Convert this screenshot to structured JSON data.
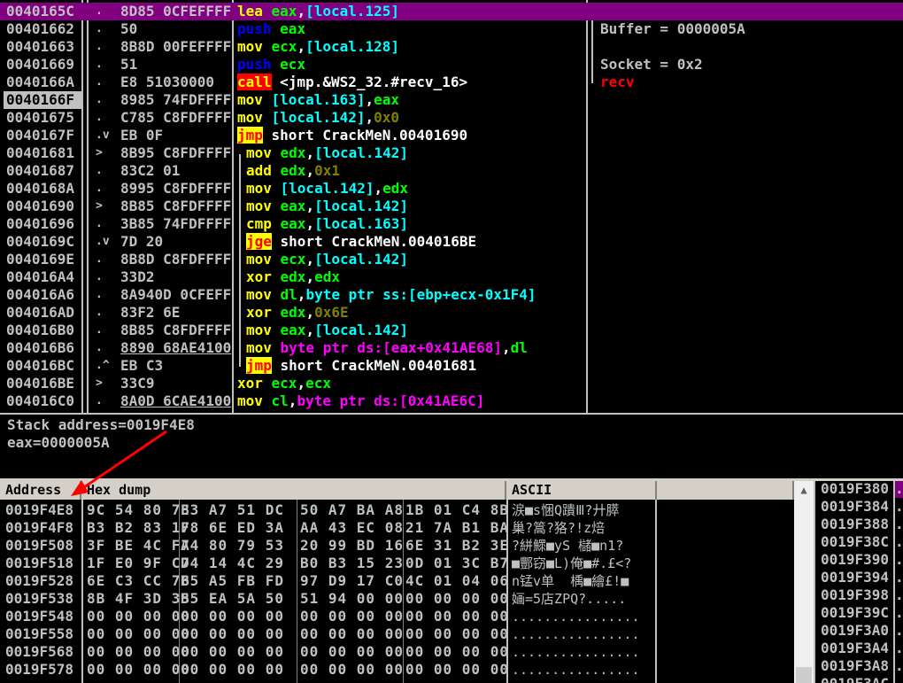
{
  "disasm": [
    {
      "addr": "0040165C",
      "mark": ".",
      "hex": "8D85 0CFEFFFF",
      "ins": [
        [
          "lea ",
          "c-y"
        ],
        [
          "eax",
          "c-g"
        ],
        [
          ",",
          "c-w"
        ],
        [
          "[local.125]",
          "c-c"
        ]
      ],
      "selected": true
    },
    {
      "addr": "00401662",
      "mark": ".",
      "hex": "50",
      "ins": [
        [
          "push ",
          "c-b"
        ],
        [
          "eax",
          "c-g"
        ]
      ]
    },
    {
      "addr": "00401663",
      "mark": ".",
      "hex": "8B8D 00FEFFFF",
      "ins": [
        [
          "mov ",
          "c-y"
        ],
        [
          "ecx",
          "c-g"
        ],
        [
          ",",
          "c-w"
        ],
        [
          "[local.128]",
          "c-c"
        ]
      ]
    },
    {
      "addr": "00401669",
      "mark": ".",
      "hex": "51",
      "ins": [
        [
          "push ",
          "c-b"
        ],
        [
          "ecx",
          "c-g"
        ]
      ]
    },
    {
      "addr": "0040166A",
      "mark": ".",
      "hex": "E8 51030000",
      "ins": [
        [
          "call",
          "call"
        ],
        [
          " <jmp.&WS2_32.#recv_16>",
          "c-w"
        ]
      ]
    },
    {
      "addr": "0040166F",
      "mark": ".",
      "hex": "8985 74FDFFFF",
      "ins": [
        [
          "mov ",
          "c-y"
        ],
        [
          "[local.163]",
          "c-c"
        ],
        [
          ",",
          "c-w"
        ],
        [
          "eax",
          "c-g"
        ]
      ],
      "current": true
    },
    {
      "addr": "00401675",
      "mark": ".",
      "hex": "C785 C8FDFFFF",
      "ins": [
        [
          "mov ",
          "c-y"
        ],
        [
          "[local.142]",
          "c-c"
        ],
        [
          ",",
          "c-w"
        ],
        [
          "0x0",
          "c-o"
        ]
      ]
    },
    {
      "addr": "0040167F",
      "mark": ".v",
      "hex": "EB 0F",
      "ins": [
        [
          "jmp",
          "jmp"
        ],
        [
          " short CrackMeN.00401690",
          "c-w"
        ]
      ]
    },
    {
      "addr": "00401681",
      "mark": ">",
      "hex": "8B95 C8FDFFFF",
      "ins": [
        [
          "mov ",
          "c-y"
        ],
        [
          "edx",
          "c-g"
        ],
        [
          ",",
          "c-w"
        ],
        [
          "[local.142]",
          "c-c"
        ]
      ],
      "loop": true
    },
    {
      "addr": "00401687",
      "mark": ".",
      "hex": "83C2 01",
      "ins": [
        [
          "add ",
          "c-y"
        ],
        [
          "edx",
          "c-g"
        ],
        [
          ",",
          "c-w"
        ],
        [
          "0x1",
          "c-o"
        ]
      ],
      "loop": true
    },
    {
      "addr": "0040168A",
      "mark": ".",
      "hex": "8995 C8FDFFFF",
      "ins": [
        [
          "mov ",
          "c-y"
        ],
        [
          "[local.142]",
          "c-c"
        ],
        [
          ",",
          "c-w"
        ],
        [
          "edx",
          "c-g"
        ]
      ],
      "loop": true
    },
    {
      "addr": "00401690",
      "mark": ">",
      "hex": "8B85 C8FDFFFF",
      "ins": [
        [
          "mov ",
          "c-y"
        ],
        [
          "eax",
          "c-g"
        ],
        [
          ",",
          "c-w"
        ],
        [
          "[local.142]",
          "c-c"
        ]
      ],
      "loop": true
    },
    {
      "addr": "00401696",
      "mark": ".",
      "hex": "3B85 74FDFFFF",
      "ins": [
        [
          "cmp ",
          "c-y"
        ],
        [
          "eax",
          "c-g"
        ],
        [
          ",",
          "c-w"
        ],
        [
          "[local.163]",
          "c-c"
        ]
      ],
      "loop": true
    },
    {
      "addr": "0040169C",
      "mark": ".v",
      "hex": "7D 20",
      "ins": [
        [
          "jge",
          "jmp"
        ],
        [
          " short CrackMeN.004016BE",
          "c-w"
        ]
      ],
      "loop": true
    },
    {
      "addr": "0040169E",
      "mark": ".",
      "hex": "8B8D C8FDFFFF",
      "ins": [
        [
          "mov ",
          "c-y"
        ],
        [
          "ecx",
          "c-g"
        ],
        [
          ",",
          "c-w"
        ],
        [
          "[local.142]",
          "c-c"
        ]
      ],
      "loop": true
    },
    {
      "addr": "004016A4",
      "mark": ".",
      "hex": "33D2",
      "ins": [
        [
          "xor ",
          "c-y"
        ],
        [
          "edx",
          "c-g"
        ],
        [
          ",",
          "c-w"
        ],
        [
          "edx",
          "c-g"
        ]
      ],
      "loop": true
    },
    {
      "addr": "004016A6",
      "mark": ".",
      "hex": "8A940D 0CFEFFFF",
      "ins": [
        [
          "mov ",
          "c-y"
        ],
        [
          "dl",
          "c-g"
        ],
        [
          ",",
          "c-w"
        ],
        [
          "byte ptr ss:[ebp+ecx-0x1F4]",
          "c-c"
        ]
      ],
      "loop": true
    },
    {
      "addr": "004016AD",
      "mark": ".",
      "hex": "83F2 6E",
      "ins": [
        [
          "xor ",
          "c-y"
        ],
        [
          "edx",
          "c-g"
        ],
        [
          ",",
          "c-w"
        ],
        [
          "0x6E",
          "c-o"
        ]
      ],
      "loop": true
    },
    {
      "addr": "004016B0",
      "mark": ".",
      "hex": "8B85 C8FDFFFF",
      "ins": [
        [
          "mov ",
          "c-y"
        ],
        [
          "eax",
          "c-g"
        ],
        [
          ",",
          "c-w"
        ],
        [
          "[local.142]",
          "c-c"
        ]
      ],
      "loop": true
    },
    {
      "addr": "004016B6",
      "mark": ".",
      "hex": "8890 68AE4100",
      "ul": true,
      "ins": [
        [
          "mov ",
          "c-y"
        ],
        [
          "byte ptr ds:[eax+0x41AE68]",
          "c-m"
        ],
        [
          ",",
          "c-w"
        ],
        [
          "dl",
          "c-g"
        ]
      ],
      "loop": true
    },
    {
      "addr": "004016BC",
      "mark": ".^",
      "hex": "EB C3",
      "ins": [
        [
          "jmp",
          "jmp"
        ],
        [
          " short CrackMeN.00401681",
          "c-w"
        ]
      ],
      "loop": true
    },
    {
      "addr": "004016BE",
      "mark": ">",
      "hex": "33C9",
      "ins": [
        [
          "xor ",
          "c-y"
        ],
        [
          "ecx",
          "c-g"
        ],
        [
          ",",
          "c-w"
        ],
        [
          "ecx",
          "c-g"
        ]
      ]
    },
    {
      "addr": "004016C0",
      "mark": ".",
      "hex": "8A0D 6CAE4100",
      "ul": true,
      "ins": [
        [
          "mov ",
          "c-y"
        ],
        [
          "cl",
          "c-g"
        ],
        [
          ",",
          "c-w"
        ],
        [
          "byte ptr ds:[0x41AE6C]",
          "c-m"
        ]
      ]
    }
  ],
  "comments": {
    "buffer": "Buffer = 0000005A",
    "socket": "Socket = 0x2",
    "func": "recv"
  },
  "info": {
    "line1": "Stack address=0019F4E8",
    "line2": "eax=0000005A"
  },
  "dump": {
    "headers": {
      "address": "Address",
      "hex": "Hex dump",
      "ascii": "ASCII"
    },
    "rows": [
      {
        "addr": "0019F4E8",
        "bytes": [
          "9C 54 80 73",
          "E3 A7 51 DC",
          "50 A7 BA A8",
          "1B 01 C4 8B"
        ],
        "ascii": "涙■s悃Q蹪Ⅲ?廾膵"
      },
      {
        "addr": "0019F4F8",
        "bytes": [
          "B3 B2 83 17",
          "F8 6E ED 3A",
          "AA 43 EC 08",
          "21 7A B1 BA"
        ],
        "ascii": "巢?篙?狢?!z焙"
      },
      {
        "addr": "0019F508",
        "bytes": [
          "3F BE 4C F7",
          "A4 80 79 53",
          "20 99 BD 16",
          "6E 31 B2 3E"
        ],
        "ascii": "?絣鰥■yS 櫧■n1?"
      },
      {
        "addr": "0019F518",
        "bytes": [
          "1F E0 9F C7",
          "D4 14 4C 29",
          "B0 B3 15 23",
          "0D 01 3C B7"
        ],
        "ascii": "■酆窃■L)俺■#.£<?"
      },
      {
        "addr": "0019F528",
        "bytes": [
          "6E C3 CC 76",
          "B5 A5 FB FD",
          "97 D9 17 C0",
          "4C 01 04 06"
        ],
        "ascii": "n锰v单  楀■繪£!■"
      },
      {
        "addr": "0019F538",
        "bytes": [
          "8B 4F 3D 35",
          "B5 EA 5A 50",
          "51 94 00 00",
          "00 00 00 00"
        ],
        "ascii": "婳=5店ZPQ?....."
      },
      {
        "addr": "0019F548",
        "bytes": [
          "00 00 00 00",
          "00 00 00 00",
          "00 00 00 00",
          "00 00 00 00"
        ],
        "ascii": "................"
      },
      {
        "addr": "0019F558",
        "bytes": [
          "00 00 00 00",
          "00 00 00 00",
          "00 00 00 00",
          "00 00 00 00"
        ],
        "ascii": "................"
      },
      {
        "addr": "0019F568",
        "bytes": [
          "00 00 00 00",
          "00 00 00 00",
          "00 00 00 00",
          "00 00 00 00"
        ],
        "ascii": "................"
      },
      {
        "addr": "0019F578",
        "bytes": [
          "00 00 00 00",
          "00 00 00 00",
          "00 00 00 00",
          "00 00 00 00"
        ],
        "ascii": "................"
      }
    ]
  },
  "stack": [
    "0019F380",
    "0019F384",
    "0019F388",
    "0019F38C",
    "0019F390",
    "0019F394",
    "0019F398",
    "0019F39C",
    "0019F3A0",
    "0019F3A4",
    "0019F3A8",
    "0019F3AC"
  ],
  "colors": {
    "selection": "#800080",
    "arrow": "#ff0000"
  }
}
